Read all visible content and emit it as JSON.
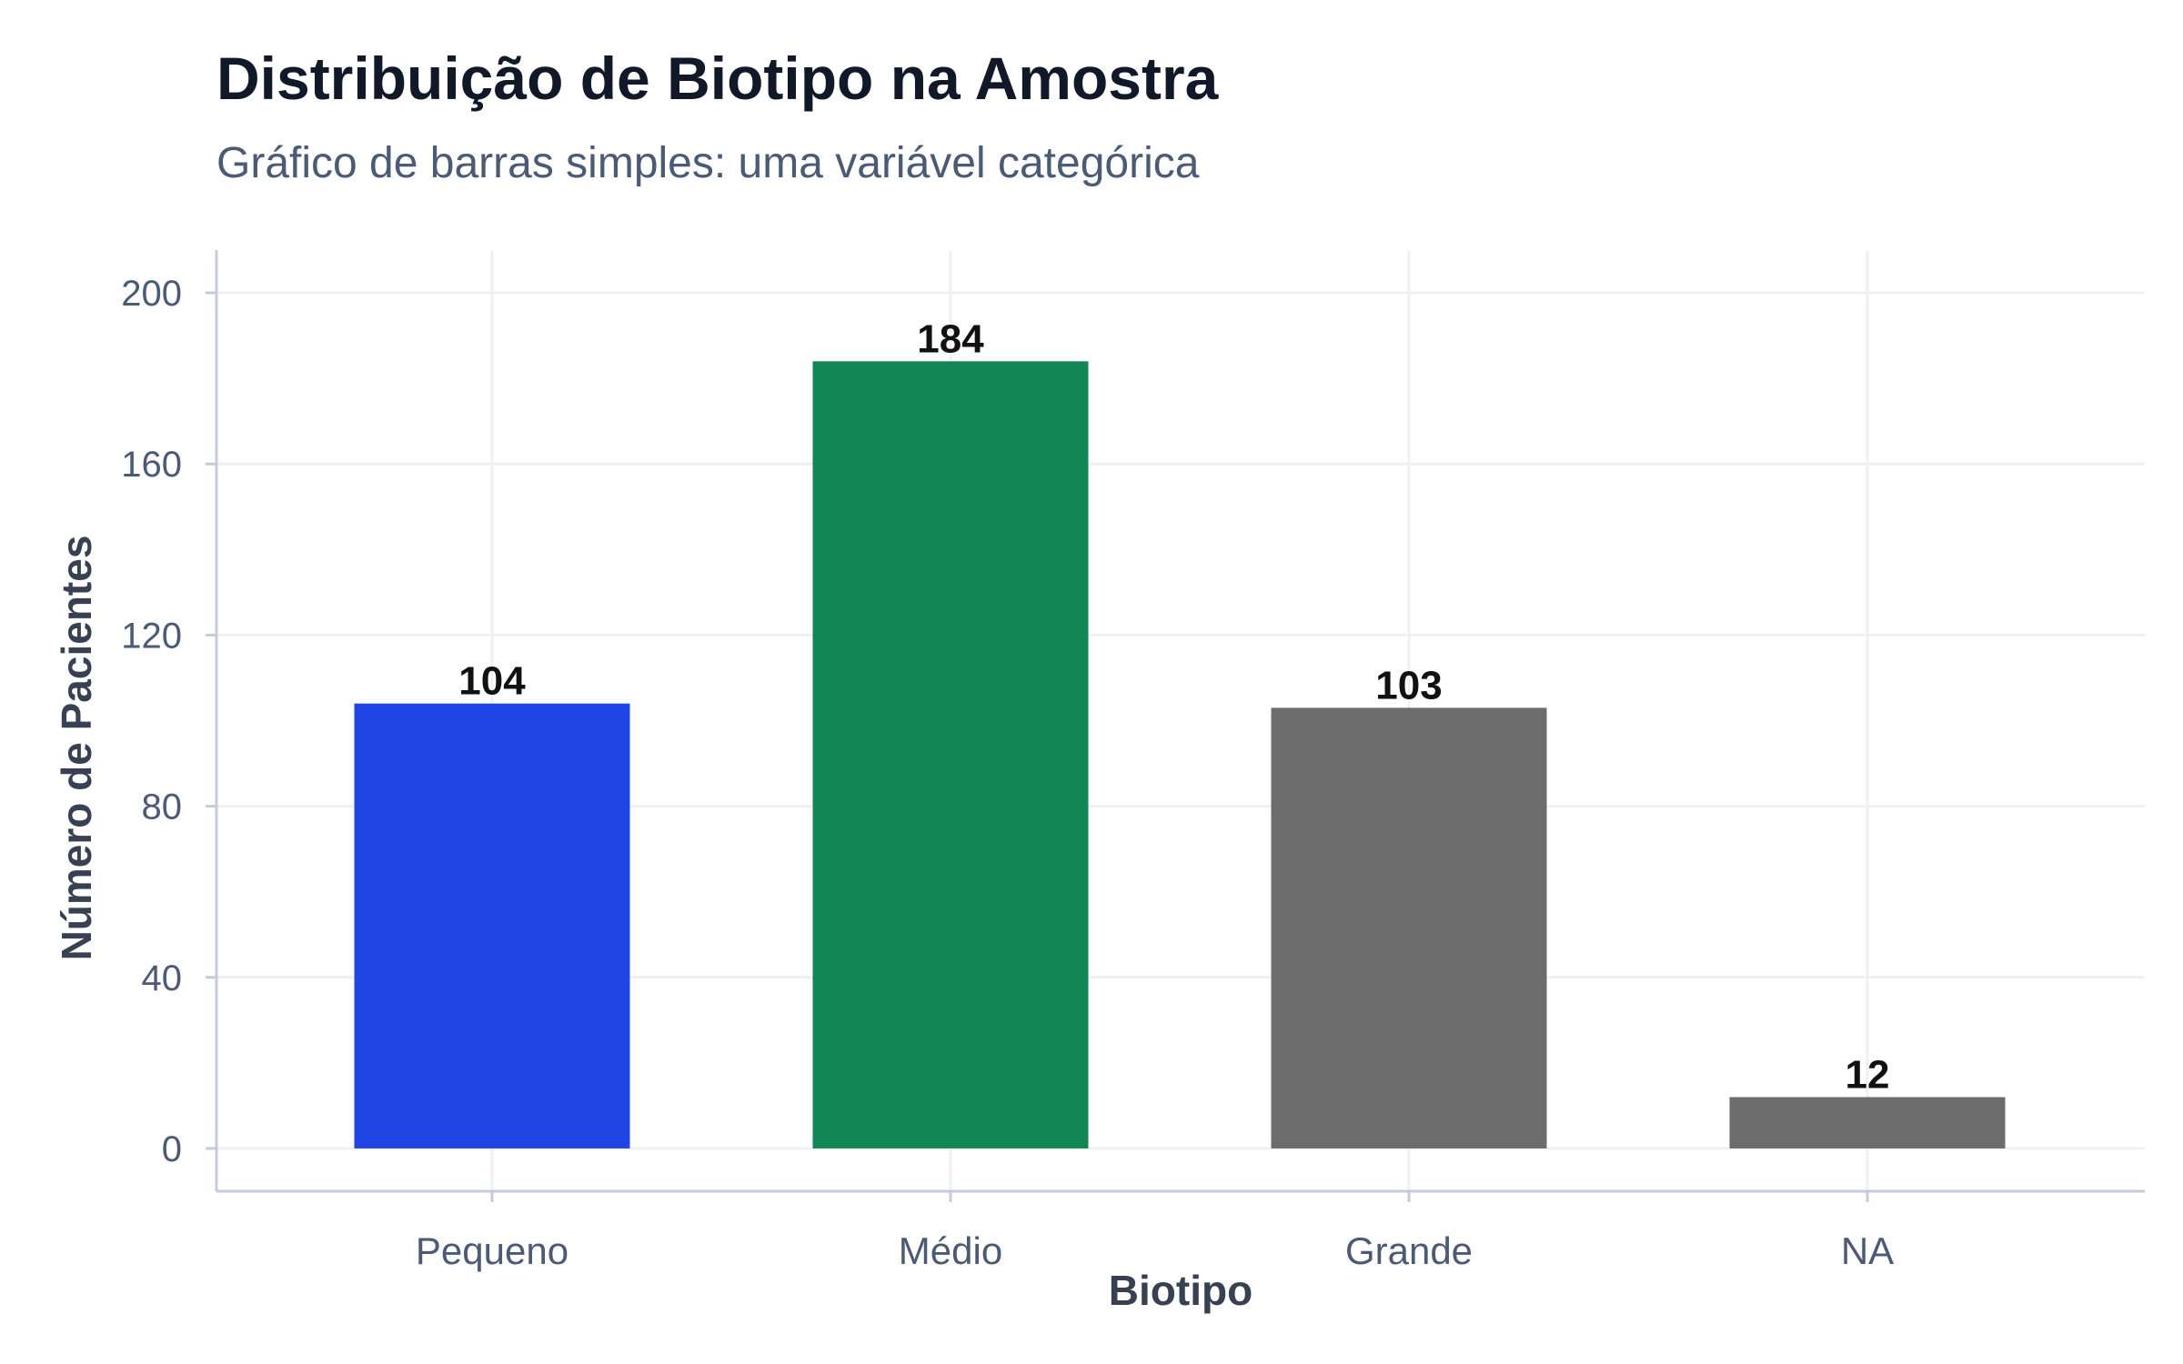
{
  "chart_data": {
    "type": "bar",
    "title": "Distribuição de Biotipo na Amostra",
    "subtitle": "Gráfico de barras simples: uma variável categórica",
    "xlabel": "Biotipo",
    "ylabel": "Número de Pacientes",
    "categories": [
      "Pequeno",
      "Médio",
      "Grande",
      "NA"
    ],
    "values": [
      104,
      184,
      103,
      12
    ],
    "bar_colors": [
      "#1f46e5",
      "#138656",
      "#6c6c6c",
      "#6c6c6c"
    ],
    "ylim": [
      -10,
      210
    ],
    "yticks": [
      0,
      40,
      80,
      120,
      160,
      200
    ],
    "grid": true,
    "colors": {
      "grid": "#eef0f4",
      "axis": "#c5cbd8",
      "tick_text": "#4b5a75"
    }
  }
}
